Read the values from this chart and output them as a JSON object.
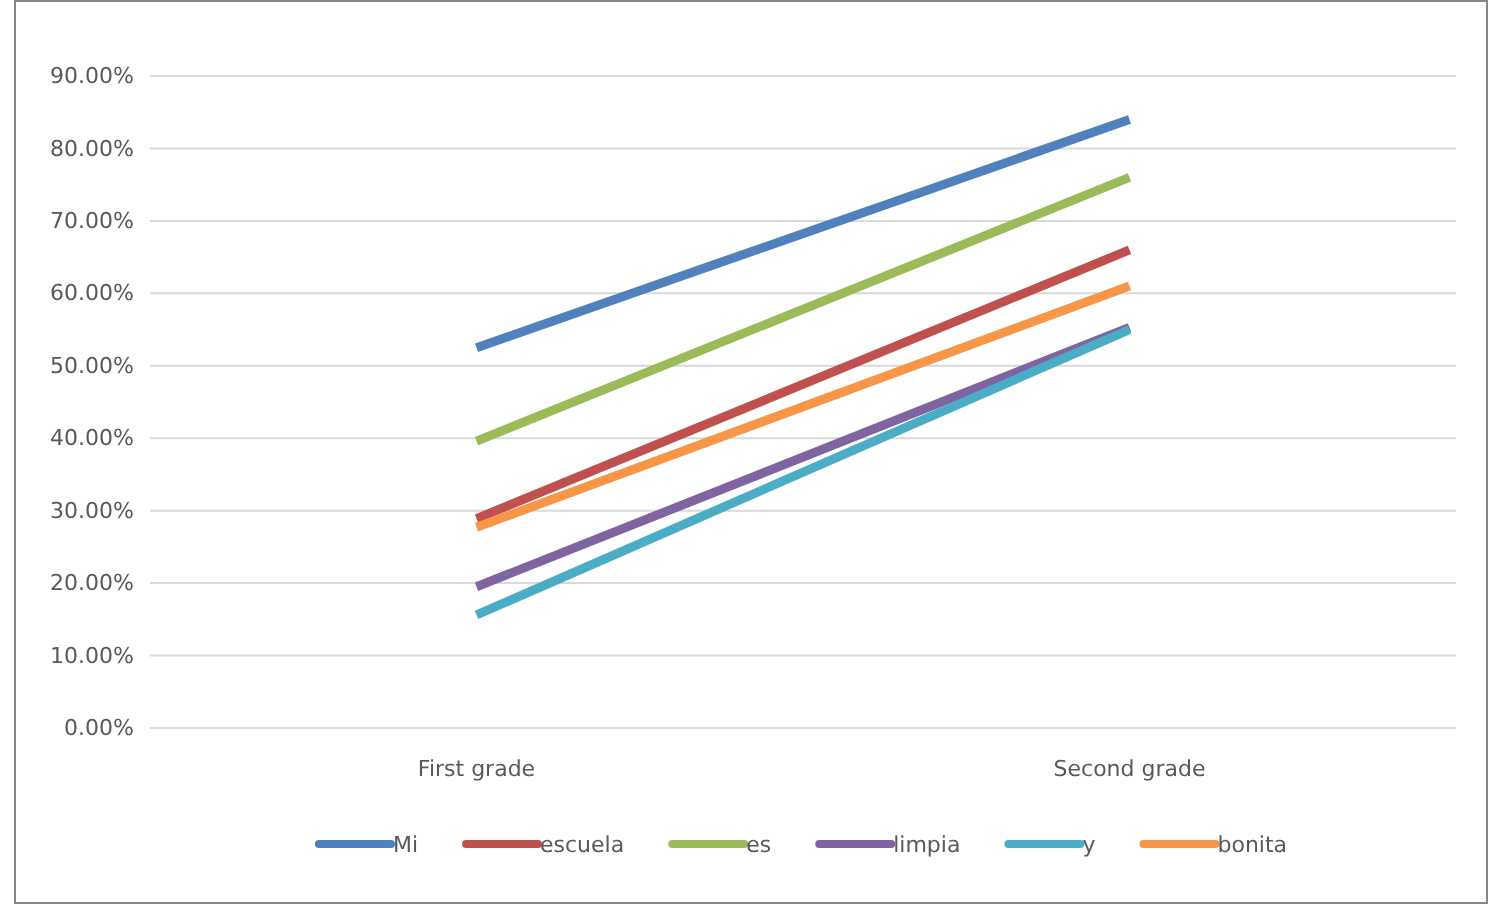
{
  "chart_data": {
    "type": "line",
    "categories": [
      "First grade",
      "Second grade"
    ],
    "series": [
      {
        "name": "Mi",
        "color": "#4f81bd",
        "values": [
          52.5,
          84
        ]
      },
      {
        "name": "escuela",
        "color": "#c0504d",
        "values": [
          28.9,
          66
        ]
      },
      {
        "name": "es",
        "color": "#9bbb59",
        "values": [
          39.6,
          76
        ]
      },
      {
        "name": "limpia",
        "color": "#8064a2",
        "values": [
          19.5,
          55.3
        ]
      },
      {
        "name": "y",
        "color": "#4bacc6",
        "values": [
          15.6,
          55
        ]
      },
      {
        "name": "bonita",
        "color": "#f79646",
        "values": [
          27.7,
          61
        ]
      }
    ],
    "ylim": [
      0,
      90
    ],
    "yticks": [
      {
        "value": 0,
        "label": "0.00%"
      },
      {
        "value": 10,
        "label": "10.00%"
      },
      {
        "value": 20,
        "label": "20.00%"
      },
      {
        "value": 30,
        "label": "30.00%"
      },
      {
        "value": 40,
        "label": "40.00%"
      },
      {
        "value": 50,
        "label": "50.00%"
      },
      {
        "value": 60,
        "label": "60.00%"
      },
      {
        "value": 70,
        "label": "70.00%"
      },
      {
        "value": 80,
        "label": "80.00%"
      },
      {
        "value": 90,
        "label": "90.00%"
      }
    ],
    "grid": "y",
    "legend": "bottom",
    "marker": "none",
    "line_style": "solid"
  }
}
